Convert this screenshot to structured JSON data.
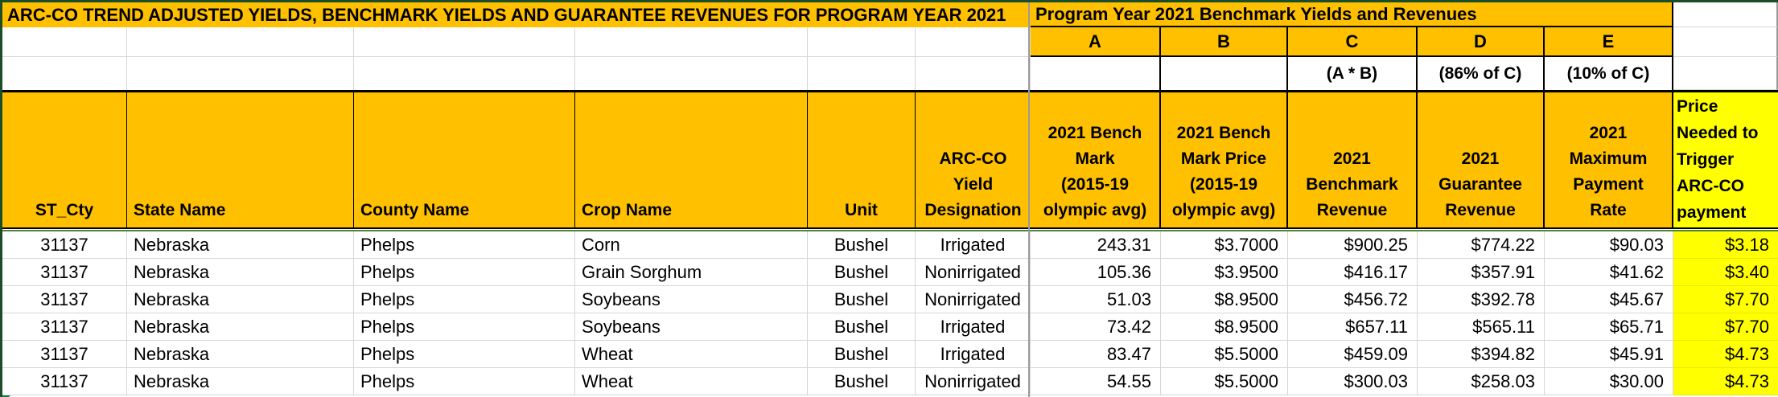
{
  "titles": {
    "left": "ARC-CO TREND ADJUSTED YIELDS, BENCHMARK YIELDS AND GUARANTEE REVENUES FOR PROGRAM YEAR 2021",
    "right": "Program Year 2021 Benchmark Yields and  Revenues"
  },
  "benchmark_block": {
    "letters": [
      "A",
      "B",
      "C",
      "D",
      "E"
    ],
    "formulas": [
      "",
      "",
      "(A * B)",
      "(86% of C)",
      "(10% of C)"
    ]
  },
  "headers": [
    "ST_Cty",
    "State Name",
    "County Name",
    "Crop Name",
    "Unit",
    "ARC-CO\nYield\nDesignation",
    "2021 Bench\nMark\n(2015-19\nolympic avg)",
    "2021 Bench\nMark Price\n(2015-19\nolympic avg)",
    "2021\nBenchmark\nRevenue",
    "2021\nGuarantee\nRevenue",
    "2021\nMaximum\nPayment\nRate",
    "Price\nNeeded to\nTrigger\nARC-CO\npayment"
  ],
  "rows": [
    {
      "st_cty": "31137",
      "state": "Nebraska",
      "county": "Phelps",
      "crop": "Corn",
      "unit": "Bushel",
      "designation": "Irrigated",
      "bench_yield": "243.31",
      "bench_price": "$3.7000",
      "bench_revenue": "$900.25",
      "guar_revenue": "$774.22",
      "max_rate": "$90.03",
      "trigger": "$3.18"
    },
    {
      "st_cty": "31137",
      "state": "Nebraska",
      "county": "Phelps",
      "crop": "Grain Sorghum",
      "unit": "Bushel",
      "designation": "Nonirrigated",
      "bench_yield": "105.36",
      "bench_price": "$3.9500",
      "bench_revenue": "$416.17",
      "guar_revenue": "$357.91",
      "max_rate": "$41.62",
      "trigger": "$3.40"
    },
    {
      "st_cty": "31137",
      "state": "Nebraska",
      "county": "Phelps",
      "crop": "Soybeans",
      "unit": "Bushel",
      "designation": "Nonirrigated",
      "bench_yield": "51.03",
      "bench_price": "$8.9500",
      "bench_revenue": "$456.72",
      "guar_revenue": "$392.78",
      "max_rate": "$45.67",
      "trigger": "$7.70"
    },
    {
      "st_cty": "31137",
      "state": "Nebraska",
      "county": "Phelps",
      "crop": "Soybeans",
      "unit": "Bushel",
      "designation": "Irrigated",
      "bench_yield": "73.42",
      "bench_price": "$8.9500",
      "bench_revenue": "$657.11",
      "guar_revenue": "$565.11",
      "max_rate": "$65.71",
      "trigger": "$7.70"
    },
    {
      "st_cty": "31137",
      "state": "Nebraska",
      "county": "Phelps",
      "crop": "Wheat",
      "unit": "Bushel",
      "designation": "Irrigated",
      "bench_yield": "83.47",
      "bench_price": "$5.5000",
      "bench_revenue": "$459.09",
      "guar_revenue": "$394.82",
      "max_rate": "$45.91",
      "trigger": "$4.73"
    },
    {
      "st_cty": "31137",
      "state": "Nebraska",
      "county": "Phelps",
      "crop": "Wheat",
      "unit": "Bushel",
      "designation": "Nonirrigated",
      "bench_yield": "54.55",
      "bench_price": "$5.5000",
      "bench_revenue": "$300.03",
      "guar_revenue": "$258.03",
      "max_rate": "$30.00",
      "trigger": "$4.73"
    }
  ],
  "colors": {
    "header_orange": "#FFC000",
    "highlight_yellow": "#FFFF00",
    "pane_bar_green": "#1B4D2B",
    "separator_green": "#538135",
    "error_triangle_green": "#1E7145",
    "divider_gray": "#9B9B9B"
  }
}
